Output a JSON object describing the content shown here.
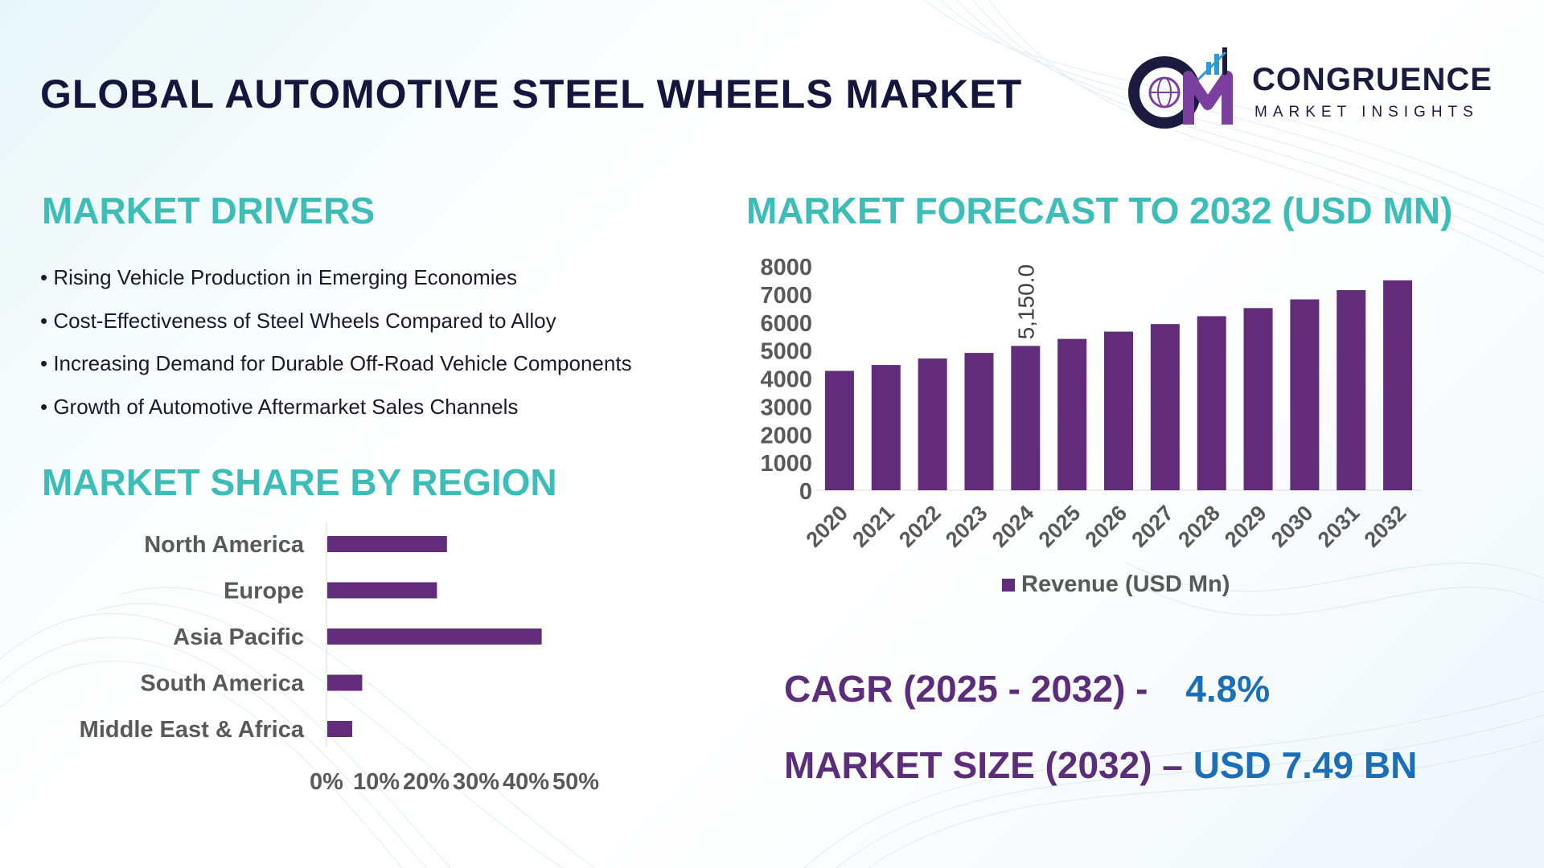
{
  "header": {
    "title": "GLOBAL AUTOMOTIVE STEEL WHEELS MARKET"
  },
  "logo": {
    "initials": "CM",
    "name": "CONGRUENCE",
    "tagline": "MARKET INSIGHTS"
  },
  "drivers": {
    "title": "MARKET DRIVERS",
    "items": [
      "• Rising Vehicle Production in Emerging Economies",
      "• Cost-Effectiveness of Steel Wheels Compared to Alloy",
      "• Increasing Demand for Durable Off-Road Vehicle Components",
      "• Growth of Automotive Aftermarket Sales Channels"
    ]
  },
  "region": {
    "title": "MARKET SHARE BY REGION"
  },
  "forecast": {
    "title": "MARKET FORECAST TO 2032 (USD MN)"
  },
  "stats": {
    "cagr_label": "CAGR (2025 - 2032) -",
    "cagr_value": "4.8%",
    "size_label": "MARKET SIZE (2032) –",
    "size_value": "USD 7.49 BN"
  },
  "colors": {
    "bar": "#622c7b",
    "teal": "#3dbdb7",
    "navy": "#15163d",
    "purple_text": "#5c2d7a",
    "blue_text": "#1b6fb8"
  },
  "chart_data": [
    {
      "type": "bar",
      "orientation": "horizontal",
      "title": "MARKET SHARE BY REGION",
      "categories": [
        "North America",
        "Europe",
        "Asia Pacific",
        "South America",
        "Middle East & Africa"
      ],
      "values": [
        24,
        22,
        43,
        7,
        5
      ],
      "xlim": [
        0,
        50
      ],
      "ticks": [
        "0%",
        "10%",
        "20%",
        "30%",
        "40%",
        "50%"
      ],
      "tick_values": [
        0,
        10,
        20,
        30,
        40,
        50
      ],
      "grid": false
    },
    {
      "type": "bar",
      "title": "MARKET FORECAST TO 2032 (USD MN)",
      "categories": [
        "2020",
        "2021",
        "2022",
        "2023",
        "2024",
        "2025",
        "2026",
        "2027",
        "2028",
        "2029",
        "2030",
        "2031",
        "2032"
      ],
      "series": [
        {
          "name": "Revenue (USD Mn)",
          "values": [
            4260,
            4470,
            4700,
            4900,
            5150,
            5400,
            5660,
            5930,
            6210,
            6500,
            6810,
            7140,
            7490
          ]
        }
      ],
      "ylim": [
        0,
        8000
      ],
      "yticks": [
        "0",
        "1000",
        "2000",
        "3000",
        "4000",
        "5000",
        "6000",
        "7000",
        "8000"
      ],
      "ytick_values": [
        0,
        1000,
        2000,
        3000,
        4000,
        5000,
        6000,
        7000,
        8000
      ],
      "data_labels": [
        {
          "category": "2024",
          "text": "5,150.0"
        }
      ],
      "legend": "bottom",
      "grid": false
    }
  ]
}
